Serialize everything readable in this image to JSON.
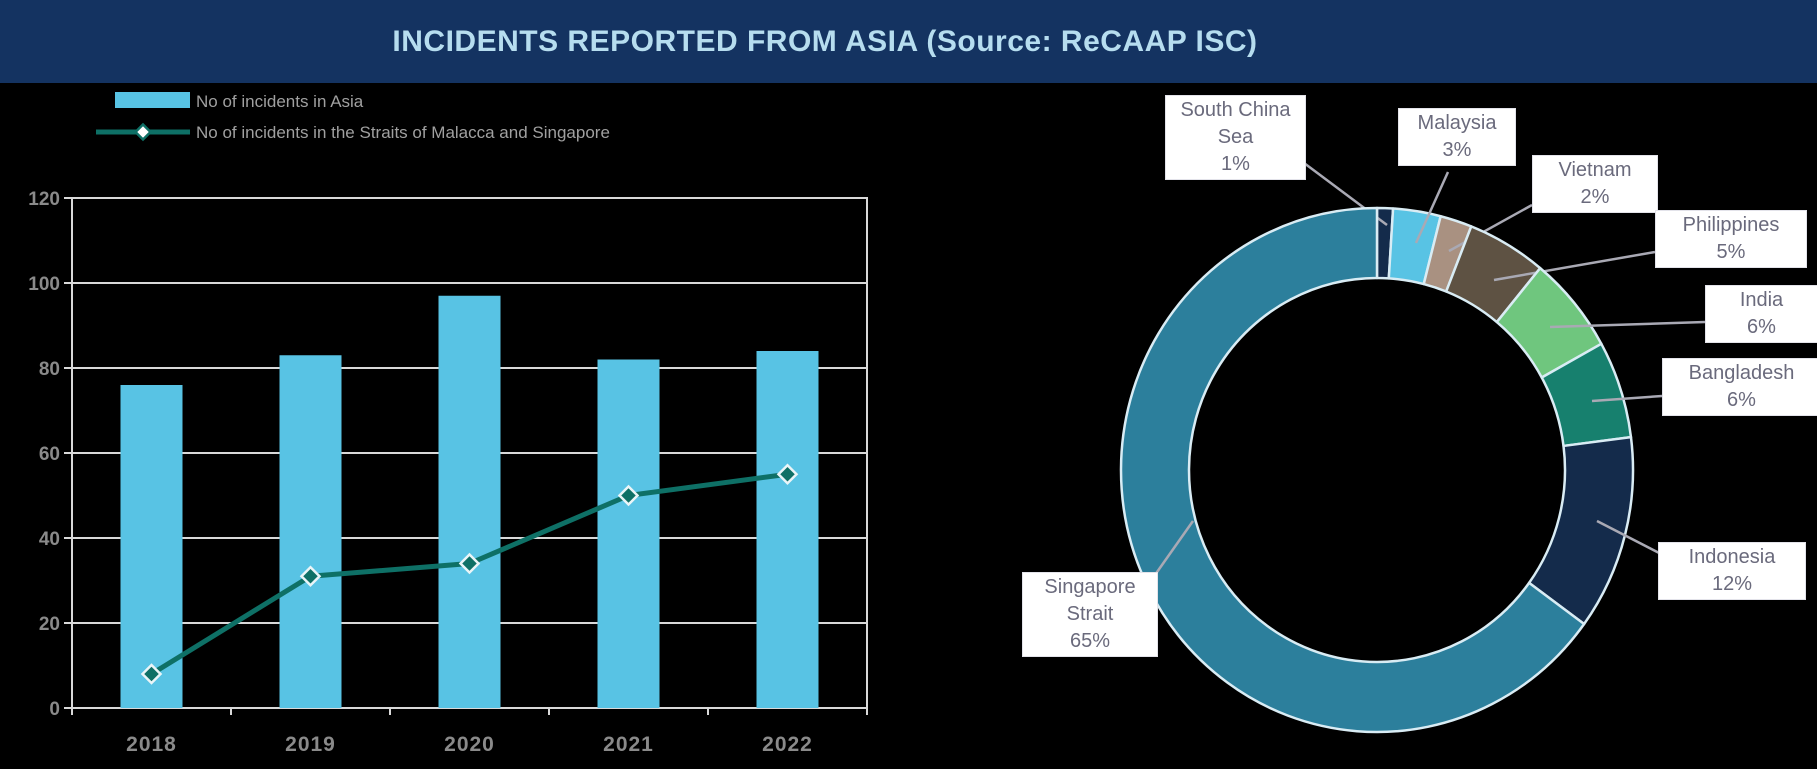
{
  "title": "INCIDENTS REPORTED FROM ASIA (Source: ReCAAP ISC)",
  "colors": {
    "background": "#000000",
    "header_bg": "#143361",
    "title_text": "#b6ddef",
    "bar": "#58c3e4",
    "line": "#0e7066",
    "marker_fill": "#0e7066",
    "marker_edge": "#eaf5f8",
    "grid": "#d9d9d9",
    "axis_text": "#8a8a8a",
    "legend_text": "#a0a0a0",
    "callout_text": "#6a6a7c",
    "leader": "#a9a9b4",
    "donut_border": "#d9ecf4"
  },
  "chart_data": [
    {
      "type": "bar",
      "subtype": "bar+line combo",
      "categories": [
        "2018",
        "2019",
        "2020",
        "2021",
        "2022"
      ],
      "series": [
        {
          "name": "No of incidents in Asia",
          "type": "bar",
          "values": [
            76,
            83,
            97,
            82,
            84
          ],
          "color": "#58c3e4"
        },
        {
          "name": "No of incidents in the Straits of Malacca and Singapore",
          "type": "line",
          "values": [
            8,
            31,
            34,
            50,
            55
          ],
          "color": "#0e7066",
          "marker": "diamond"
        }
      ],
      "ylim": [
        0,
        120
      ],
      "ytick_step": 20,
      "yticks": [
        0,
        20,
        40,
        60,
        80,
        100,
        120
      ],
      "grid": true,
      "legend_position": "top-left"
    },
    {
      "type": "pie",
      "subtype": "donut",
      "start_angle_deg": 0,
      "direction": "clockwise",
      "slices": [
        {
          "label": "South China Sea",
          "pct": 1,
          "color": "#142b4b"
        },
        {
          "label": "Malaysia",
          "pct": 3,
          "color": "#58c3e4"
        },
        {
          "label": "Vietnam",
          "pct": 2,
          "color": "#a99181"
        },
        {
          "label": "Philippines",
          "pct": 5,
          "color": "#5e5243"
        },
        {
          "label": "India",
          "pct": 6,
          "color": "#6fc67e"
        },
        {
          "label": "Bangladesh",
          "pct": 6,
          "color": "#17806e"
        },
        {
          "label": "Indonesia",
          "pct": 12,
          "color": "#142b4b"
        },
        {
          "label": "Singapore Strait",
          "pct": 65,
          "color": "#2c7f9c"
        }
      ]
    }
  ]
}
